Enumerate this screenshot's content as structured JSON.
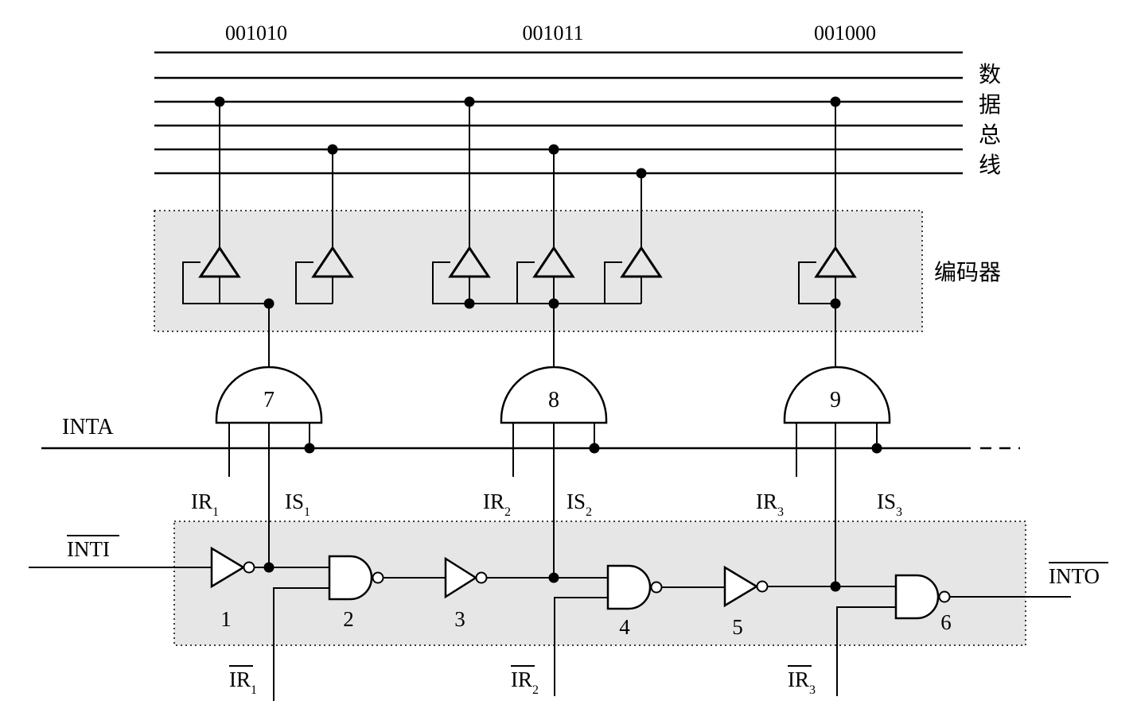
{
  "codes": [
    "001010",
    "001011",
    "001000"
  ],
  "bus_label": [
    "数",
    "据",
    "总",
    "线"
  ],
  "encoder_label": "编码器",
  "inta_label": "INTA",
  "inti_label": "INTI",
  "into_label": "INTO",
  "upper_gates": [
    "7",
    "8",
    "9"
  ],
  "ir": [
    {
      "base": "IR",
      "sub": "1"
    },
    {
      "base": "IR",
      "sub": "2"
    },
    {
      "base": "IR",
      "sub": "3"
    }
  ],
  "is": [
    {
      "base": "IS",
      "sub": "1"
    },
    {
      "base": "IS",
      "sub": "2"
    },
    {
      "base": "IS",
      "sub": "3"
    }
  ],
  "ir_bar": [
    {
      "base": "IR",
      "sub": "1"
    },
    {
      "base": "IR",
      "sub": "2"
    },
    {
      "base": "IR",
      "sub": "3"
    }
  ],
  "chain_numbers": [
    "1",
    "2",
    "3",
    "4",
    "5",
    "6"
  ]
}
